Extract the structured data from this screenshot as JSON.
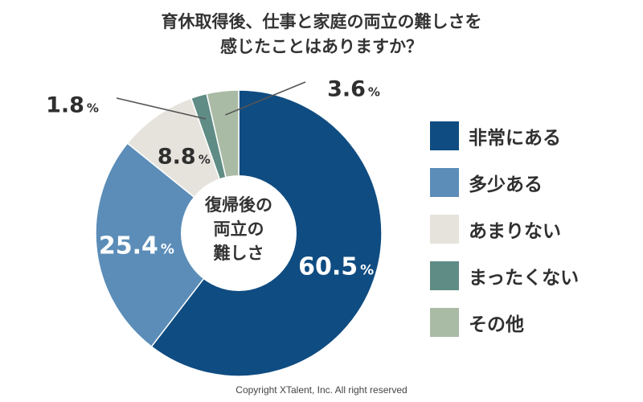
{
  "title_line1": "育休取得後、仕事と家庭の両立の難しさを",
  "title_line2": "感じたことはありますか？",
  "center_label": [
    "復帰後の",
    "両立の",
    "難しさ"
  ],
  "footer": "Copyright XTalent, Inc. All right reserved",
  "chart_data": {
    "type": "pie",
    "style": "donut",
    "categories": [
      "非常にある",
      "多少ある",
      "あまりない",
      "まったくない",
      "その他"
    ],
    "values": [
      60.5,
      25.4,
      8.8,
      1.8,
      3.6
    ],
    "value_labels": [
      "60.5",
      "25.4",
      "8.8",
      "1.8",
      "3.6"
    ],
    "unit": "%",
    "colors": [
      "#0f4c81",
      "#5b8db8",
      "#e6e3dd",
      "#5f8c85",
      "#a9bba5"
    ],
    "legend_position": "right",
    "start": "top, clockwise"
  }
}
